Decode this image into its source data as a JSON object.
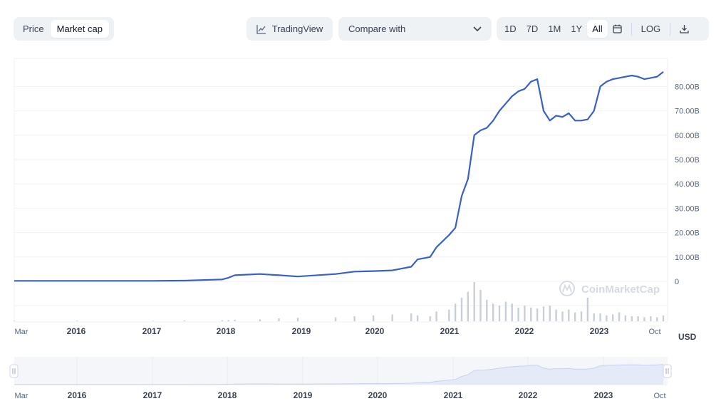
{
  "toolbar": {
    "type_toggle": {
      "price": "Price",
      "market_cap": "Market cap",
      "selected": "Market cap"
    },
    "tradingview": "TradingView",
    "compare": "Compare with",
    "ranges": [
      "1D",
      "7D",
      "1M",
      "1Y",
      "All"
    ],
    "active_range": "All",
    "log": "LOG"
  },
  "unit_label": "USD",
  "watermark": "CoinMarketCap",
  "colors": {
    "line": "#3861c6",
    "grid": "#eff2f5",
    "volume": "#c9cfd8",
    "navigator_fill": "#e4eaf8"
  },
  "chart_data": {
    "type": "line",
    "title": "",
    "xlabel": "",
    "ylabel": "",
    "currency": "USD",
    "x_ticks": [
      "Mar",
      "2016",
      "2017",
      "2018",
      "2019",
      "2020",
      "2021",
      "2022",
      "2023",
      "Oct"
    ],
    "y_ticks": [
      "0",
      "10.00B",
      "20.00B",
      "30.00B",
      "40.00B",
      "50.00B",
      "60.00B",
      "70.00B",
      "80.00B"
    ],
    "ylim": [
      0,
      85
    ],
    "y_unit": "B USD",
    "xlim": [
      "2015-03",
      "2023-10"
    ],
    "grid": true,
    "legend": "none",
    "series": [
      {
        "x": [
          "2015-03",
          "2016-01",
          "2017-01",
          "2017-06",
          "2017-12",
          "2018-01",
          "2018-02",
          "2018-06",
          "2018-09",
          "2018-12",
          "2019-06",
          "2019-09",
          "2019-12",
          "2020-03",
          "2020-06",
          "2020-07",
          "2020-09",
          "2020-10",
          "2020-12",
          "2021-01",
          "2021-02",
          "2021-03",
          "2021-04",
          "2021-05",
          "2021-06",
          "2021-07",
          "2021-08",
          "2021-09",
          "2021-10",
          "2021-11",
          "2021-12",
          "2022-01",
          "2022-02",
          "2022-03",
          "2022-04",
          "2022-05",
          "2022-06",
          "2022-07",
          "2022-08",
          "2022-09",
          "2022-10",
          "2022-11",
          "2022-12",
          "2023-01",
          "2023-02",
          "2023-03",
          "2023-04",
          "2023-05",
          "2023-06",
          "2023-07",
          "2023-08",
          "2023-09",
          "2023-10"
        ],
        "y": [
          0.2,
          0.2,
          0.2,
          0.3,
          0.8,
          1.5,
          2.5,
          3.0,
          2.5,
          2.0,
          3.0,
          4.0,
          4.2,
          4.5,
          6.0,
          9.0,
          10.0,
          14.0,
          19.0,
          22.0,
          35.0,
          42.0,
          60.0,
          62.0,
          63.0,
          66.0,
          70.0,
          73.0,
          76.0,
          78.0,
          79.0,
          82.0,
          83.0,
          70.0,
          66.0,
          68.0,
          67.5,
          69.0,
          66.0,
          66.0,
          66.5,
          70.0,
          80.0,
          82.0,
          83.0,
          83.5,
          84.0,
          84.5,
          84.0,
          83.0,
          83.5,
          84.0,
          86.0
        ]
      }
    ],
    "volume": [
      0.2,
      0.3,
      0.2,
      0.4,
      0.5,
      0.6,
      0.8,
      1.0,
      1.5,
      1.8,
      2.0,
      2.5,
      3.0,
      3.5,
      4.0,
      3.0,
      2.5,
      5.0,
      6.0,
      9.0,
      12.0,
      15.0,
      20.0,
      16.0,
      11.0,
      9.0,
      8.0,
      10.0,
      9.0,
      7.0,
      8.0,
      7.0,
      6.5,
      7.5,
      8.0,
      6.0,
      5.0,
      6.0,
      4.5,
      5.0,
      12.0,
      4.0,
      4.0,
      3.0,
      3.5,
      4.5,
      3.0,
      2.5,
      2.5,
      2.0,
      2.5,
      2.0,
      3.0
    ]
  }
}
